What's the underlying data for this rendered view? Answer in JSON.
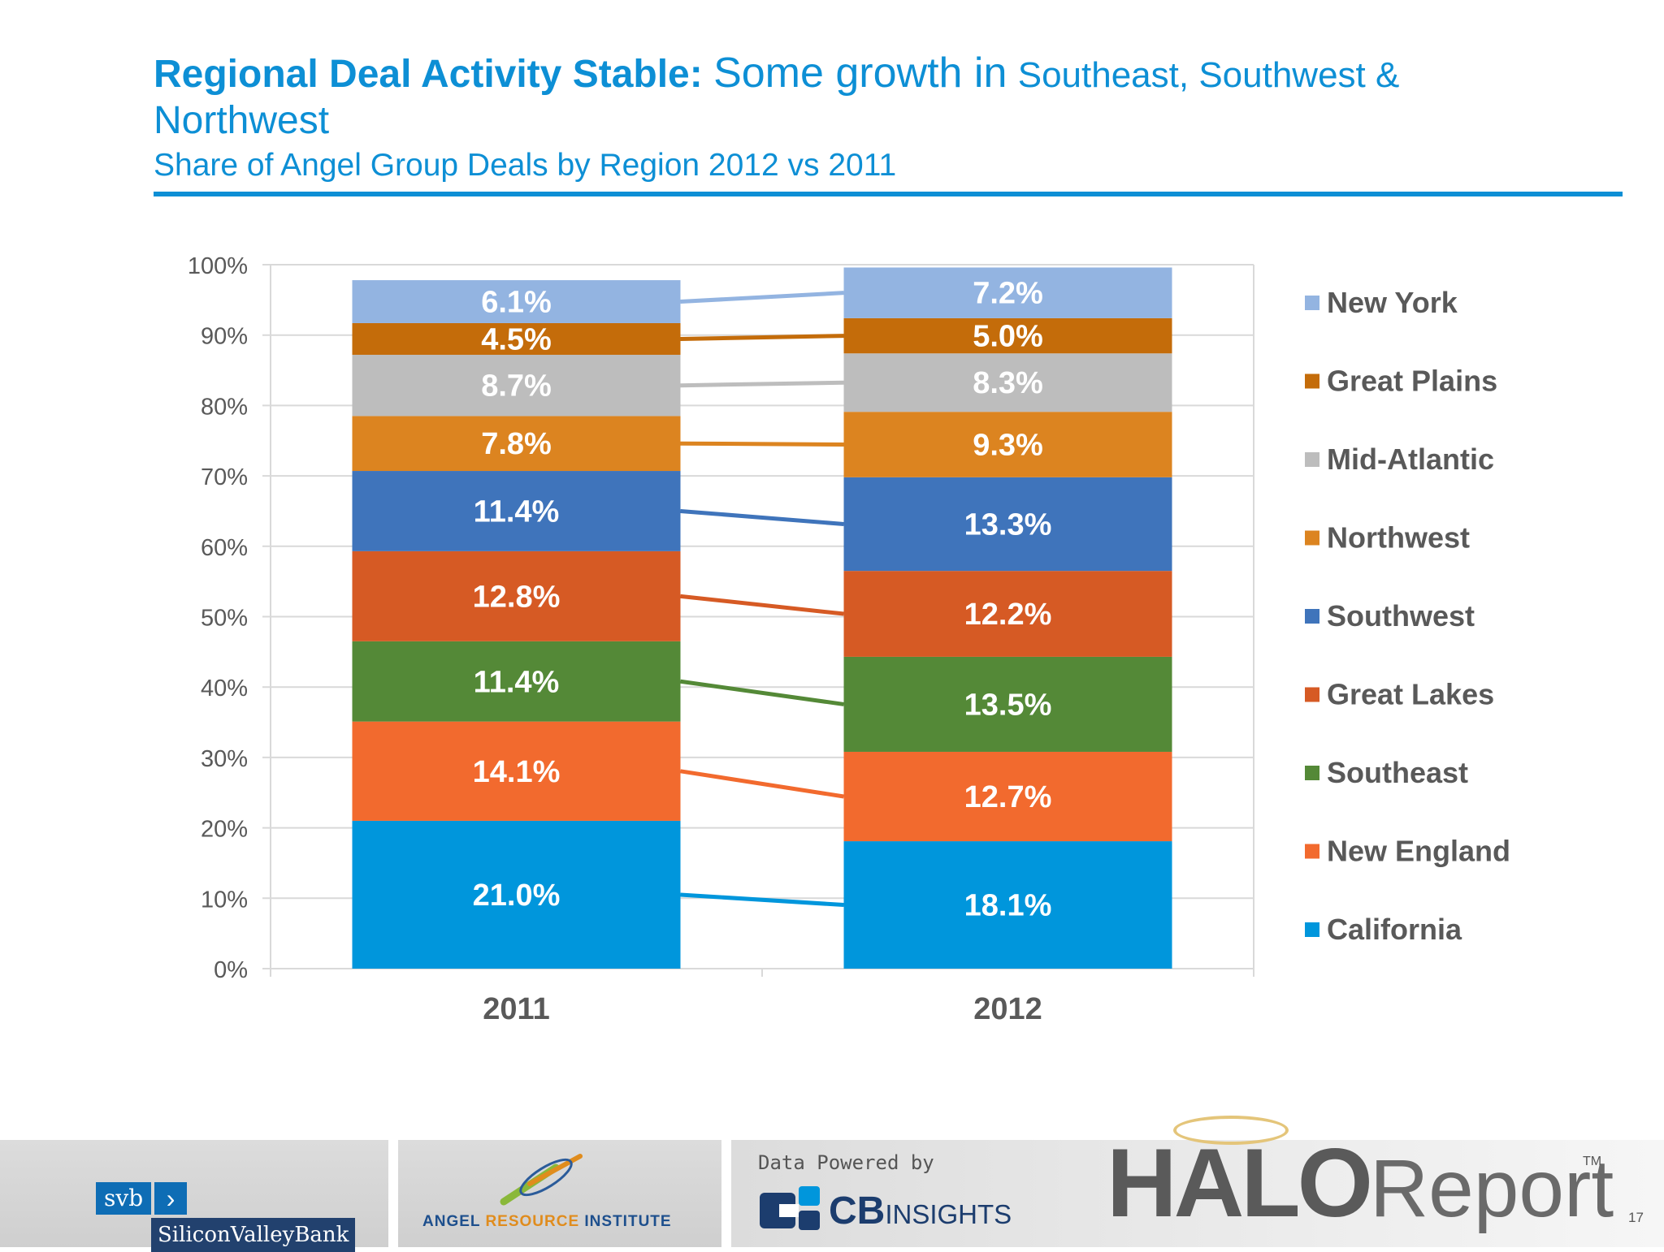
{
  "title": {
    "bold": "Regional Deal Activity Stable:",
    "rest_a": "Some growth in",
    "rest_b": "Southeast, Southwest &",
    "rest_c": "Northwest",
    "subtitle": "Share of Angel Group Deals by Region  2012 vs 2011"
  },
  "chart_data": {
    "type": "bar",
    "stacked": true,
    "categories": [
      "2011",
      "2012"
    ],
    "series": [
      {
        "name": "California",
        "color": "#0096dc",
        "values": [
          21.0,
          18.1
        ],
        "labels": [
          "21.0%",
          "18.1%"
        ]
      },
      {
        "name": "New England",
        "color": "#f26a2e",
        "values": [
          14.1,
          12.7
        ],
        "labels": [
          "14.1%",
          "12.7%"
        ]
      },
      {
        "name": "Southeast",
        "color": "#548937",
        "values": [
          11.4,
          13.5
        ],
        "labels": [
          "11.4%",
          "13.5%"
        ]
      },
      {
        "name": "Great Lakes",
        "color": "#d65a24",
        "values": [
          12.8,
          12.2
        ],
        "labels": [
          "12.8%",
          "12.2%"
        ]
      },
      {
        "name": "Southwest",
        "color": "#3f74bb",
        "values": [
          11.4,
          13.3
        ],
        "labels": [
          "11.4%",
          "13.3%"
        ]
      },
      {
        "name": "Northwest",
        "color": "#dc8420",
        "values": [
          7.8,
          9.3
        ],
        "labels": [
          "7.8%",
          "9.3%"
        ]
      },
      {
        "name": "Mid-Atlantic",
        "color": "#bdbdbd",
        "values": [
          8.7,
          8.3
        ],
        "labels": [
          "8.7%",
          "8.3%"
        ]
      },
      {
        "name": "Great Plains",
        "color": "#c46c0a",
        "values": [
          4.5,
          5.0
        ],
        "labels": [
          "4.5%",
          "5.0%"
        ]
      },
      {
        "name": "New York",
        "color": "#93b4e1",
        "values": [
          6.1,
          7.2
        ],
        "labels": [
          "6.1%",
          "7.2%"
        ]
      }
    ],
    "yticks": [
      "0%",
      "10%",
      "20%",
      "30%",
      "40%",
      "50%",
      "60%",
      "70%",
      "80%",
      "90%",
      "100%"
    ],
    "ylim": [
      0,
      100
    ],
    "grid": true,
    "legend": "right",
    "legend_order": [
      "New York",
      "Great Plains",
      "Mid-Atlantic",
      "Northwest",
      "Southwest",
      "Great Lakes",
      "Southeast",
      "New England",
      "California"
    ]
  },
  "footer": {
    "svb_word": "svb",
    "svb_arrow": "›",
    "svb_name": "SiliconValleyBank",
    "ari_a": "ANGEL ",
    "ari_b": "RESOURCE",
    "ari_c": " INSTITUTE",
    "powered_by": "Data Powered by",
    "cb": "CB",
    "insights": "INSIGHTS",
    "halo": "HALO",
    "report": "Report",
    "tm": "TM",
    "page": "17"
  }
}
